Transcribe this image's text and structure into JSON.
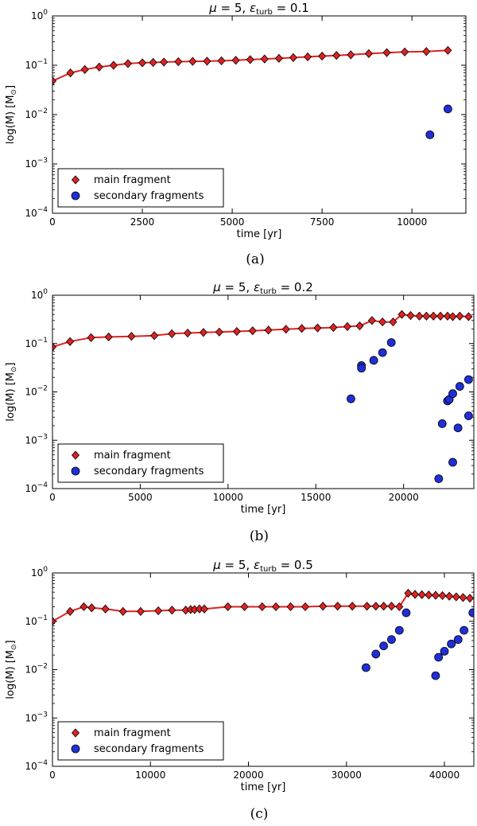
{
  "figure": {
    "captions": [
      "(a)",
      "(b)",
      "(c)"
    ]
  },
  "chart_data": [
    {
      "type": "scatter",
      "title": "μ = 5, εturb = 0.1",
      "title_parts": {
        "mu": "μ = 5, ",
        "eps": "ε",
        "sub": "turb",
        "val": " = 0.1"
      },
      "caption": "(a)",
      "xlabel": "time [yr]",
      "ylabel": "log(M) [M",
      "ylabel_sub": "⊙",
      "ylabel_end": "]",
      "yscale": "log",
      "xlim": [
        0,
        11500
      ],
      "ylim": [
        0.0001,
        1
      ],
      "xticks": [
        0,
        2500,
        5000,
        7500,
        10000
      ],
      "ytick_exponents": [
        -4,
        -3,
        -2,
        -1,
        0
      ],
      "legend": {
        "location": "lower left",
        "entries": [
          "main fragment",
          "secondary fragments"
        ]
      },
      "series": [
        {
          "name": "main fragment",
          "marker": "diamond",
          "color": "#dd2222",
          "line": true,
          "points": [
            [
              0,
              0.048
            ],
            [
              500,
              0.07
            ],
            [
              900,
              0.082
            ],
            [
              1300,
              0.092
            ],
            [
              1700,
              0.1
            ],
            [
              2100,
              0.108
            ],
            [
              2500,
              0.112
            ],
            [
              2800,
              0.114
            ],
            [
              3100,
              0.116
            ],
            [
              3500,
              0.118
            ],
            [
              3900,
              0.12
            ],
            [
              4300,
              0.121
            ],
            [
              4700,
              0.123
            ],
            [
              5100,
              0.126
            ],
            [
              5500,
              0.13
            ],
            [
              5900,
              0.134
            ],
            [
              6300,
              0.138
            ],
            [
              6700,
              0.143
            ],
            [
              7100,
              0.148
            ],
            [
              7500,
              0.153
            ],
            [
              7900,
              0.158
            ],
            [
              8300,
              0.163
            ],
            [
              8800,
              0.172
            ],
            [
              9300,
              0.18
            ],
            [
              9800,
              0.186
            ],
            [
              10400,
              0.19
            ],
            [
              11000,
              0.2
            ]
          ]
        },
        {
          "name": "secondary fragments",
          "marker": "circle",
          "color": "#1f2fd8",
          "line": false,
          "points": [
            [
              10500,
              0.0039
            ],
            [
              11000,
              0.013
            ]
          ]
        }
      ]
    },
    {
      "type": "scatter",
      "title": "μ = 5, εturb = 0.2",
      "title_parts": {
        "mu": "μ = 5, ",
        "eps": "ε",
        "sub": "turb",
        "val": " = 0.2"
      },
      "caption": "(b)",
      "xlabel": "time [yr]",
      "ylabel": "log(M) [M",
      "ylabel_sub": "⊙",
      "ylabel_end": "]",
      "yscale": "log",
      "xlim": [
        0,
        24000
      ],
      "ylim": [
        0.0001,
        1
      ],
      "xticks": [
        0,
        5000,
        10000,
        15000,
        20000
      ],
      "ytick_exponents": [
        -4,
        -3,
        -2,
        -1,
        0
      ],
      "legend": {
        "location": "lower left",
        "entries": [
          "main fragment",
          "secondary fragments"
        ]
      },
      "series": [
        {
          "name": "main fragment",
          "marker": "diamond",
          "color": "#dd2222",
          "line": true,
          "points": [
            [
              0,
              0.085
            ],
            [
              1000,
              0.11
            ],
            [
              2200,
              0.133
            ],
            [
              3200,
              0.137
            ],
            [
              4500,
              0.141
            ],
            [
              5800,
              0.146
            ],
            [
              6800,
              0.16
            ],
            [
              7700,
              0.165
            ],
            [
              8600,
              0.17
            ],
            [
              9500,
              0.173
            ],
            [
              10500,
              0.178
            ],
            [
              11400,
              0.184
            ],
            [
              12300,
              0.19
            ],
            [
              13300,
              0.198
            ],
            [
              14200,
              0.205
            ],
            [
              15100,
              0.21
            ],
            [
              16000,
              0.215
            ],
            [
              16800,
              0.225
            ],
            [
              17500,
              0.232
            ],
            [
              18200,
              0.3
            ],
            [
              18800,
              0.28
            ],
            [
              19400,
              0.28
            ],
            [
              19900,
              0.4
            ],
            [
              20400,
              0.38
            ],
            [
              20900,
              0.37
            ],
            [
              21300,
              0.37
            ],
            [
              21700,
              0.37
            ],
            [
              22100,
              0.37
            ],
            [
              22500,
              0.37
            ],
            [
              22800,
              0.36
            ],
            [
              23200,
              0.37
            ],
            [
              23700,
              0.36
            ]
          ]
        },
        {
          "name": "secondary fragments",
          "marker": "circle",
          "color": "#1f2fd8",
          "line": false,
          "points": [
            [
              17000,
              0.0072
            ],
            [
              17600,
              0.035
            ],
            [
              17600,
              0.031
            ],
            [
              18300,
              0.045
            ],
            [
              18800,
              0.065
            ],
            [
              19300,
              0.105
            ],
            [
              22000,
              0.00016
            ],
            [
              22200,
              0.0022
            ],
            [
              22500,
              0.0065
            ],
            [
              22600,
              0.007
            ],
            [
              22800,
              0.0092
            ],
            [
              22800,
              0.00035
            ],
            [
              23100,
              0.0018
            ],
            [
              23200,
              0.013
            ],
            [
              23700,
              0.018
            ],
            [
              23700,
              0.0032
            ]
          ]
        }
      ]
    },
    {
      "type": "scatter",
      "title": "μ = 5, εturb = 0.5",
      "title_parts": {
        "mu": "μ = 5, ",
        "eps": "ε",
        "sub": "turb",
        "val": " = 0.5"
      },
      "caption": "(c)",
      "xlabel": "time [yr]",
      "ylabel": "log(M) [M",
      "ylabel_sub": "⊙",
      "ylabel_end": "]",
      "yscale": "log",
      "xlim": [
        0,
        43000
      ],
      "ylim": [
        0.0001,
        1
      ],
      "xticks": [
        0,
        10000,
        20000,
        30000,
        40000
      ],
      "ytick_exponents": [
        -4,
        -3,
        -2,
        -1,
        0
      ],
      "legend": {
        "location": "lower left",
        "entries": [
          "main fragment",
          "secondary fragments"
        ]
      },
      "series": [
        {
          "name": "main fragment",
          "marker": "diamond",
          "color": "#dd2222",
          "line": true,
          "points": [
            [
              0,
              0.1
            ],
            [
              1800,
              0.16
            ],
            [
              3200,
              0.2
            ],
            [
              4000,
              0.19
            ],
            [
              5400,
              0.18
            ],
            [
              7200,
              0.16
            ],
            [
              9000,
              0.16
            ],
            [
              10800,
              0.165
            ],
            [
              12200,
              0.17
            ],
            [
              13600,
              0.17
            ],
            [
              14100,
              0.175
            ],
            [
              14500,
              0.175
            ],
            [
              15000,
              0.18
            ],
            [
              15500,
              0.18
            ],
            [
              17900,
              0.2
            ],
            [
              19600,
              0.2
            ],
            [
              21400,
              0.2
            ],
            [
              22800,
              0.2
            ],
            [
              24300,
              0.2
            ],
            [
              25800,
              0.2
            ],
            [
              27600,
              0.205
            ],
            [
              29100,
              0.205
            ],
            [
              30600,
              0.205
            ],
            [
              32100,
              0.205
            ],
            [
              33000,
              0.205
            ],
            [
              33800,
              0.205
            ],
            [
              34600,
              0.205
            ],
            [
              35400,
              0.2
            ],
            [
              36300,
              0.38
            ],
            [
              37000,
              0.36
            ],
            [
              37700,
              0.355
            ],
            [
              38400,
              0.35
            ],
            [
              39100,
              0.345
            ],
            [
              39800,
              0.34
            ],
            [
              40500,
              0.33
            ],
            [
              41200,
              0.32
            ],
            [
              41900,
              0.31
            ],
            [
              42600,
              0.3
            ]
          ]
        },
        {
          "name": "secondary fragments",
          "marker": "circle",
          "color": "#1f2fd8",
          "line": false,
          "points": [
            [
              32000,
              0.011
            ],
            [
              33000,
              0.021
            ],
            [
              33800,
              0.031
            ],
            [
              34600,
              0.042
            ],
            [
              35400,
              0.065
            ],
            [
              36100,
              0.15
            ],
            [
              39100,
              0.0075
            ],
            [
              39400,
              0.018
            ],
            [
              40000,
              0.024
            ],
            [
              40700,
              0.034
            ],
            [
              41400,
              0.042
            ],
            [
              42000,
              0.065
            ],
            [
              42900,
              0.15
            ]
          ]
        }
      ]
    }
  ]
}
